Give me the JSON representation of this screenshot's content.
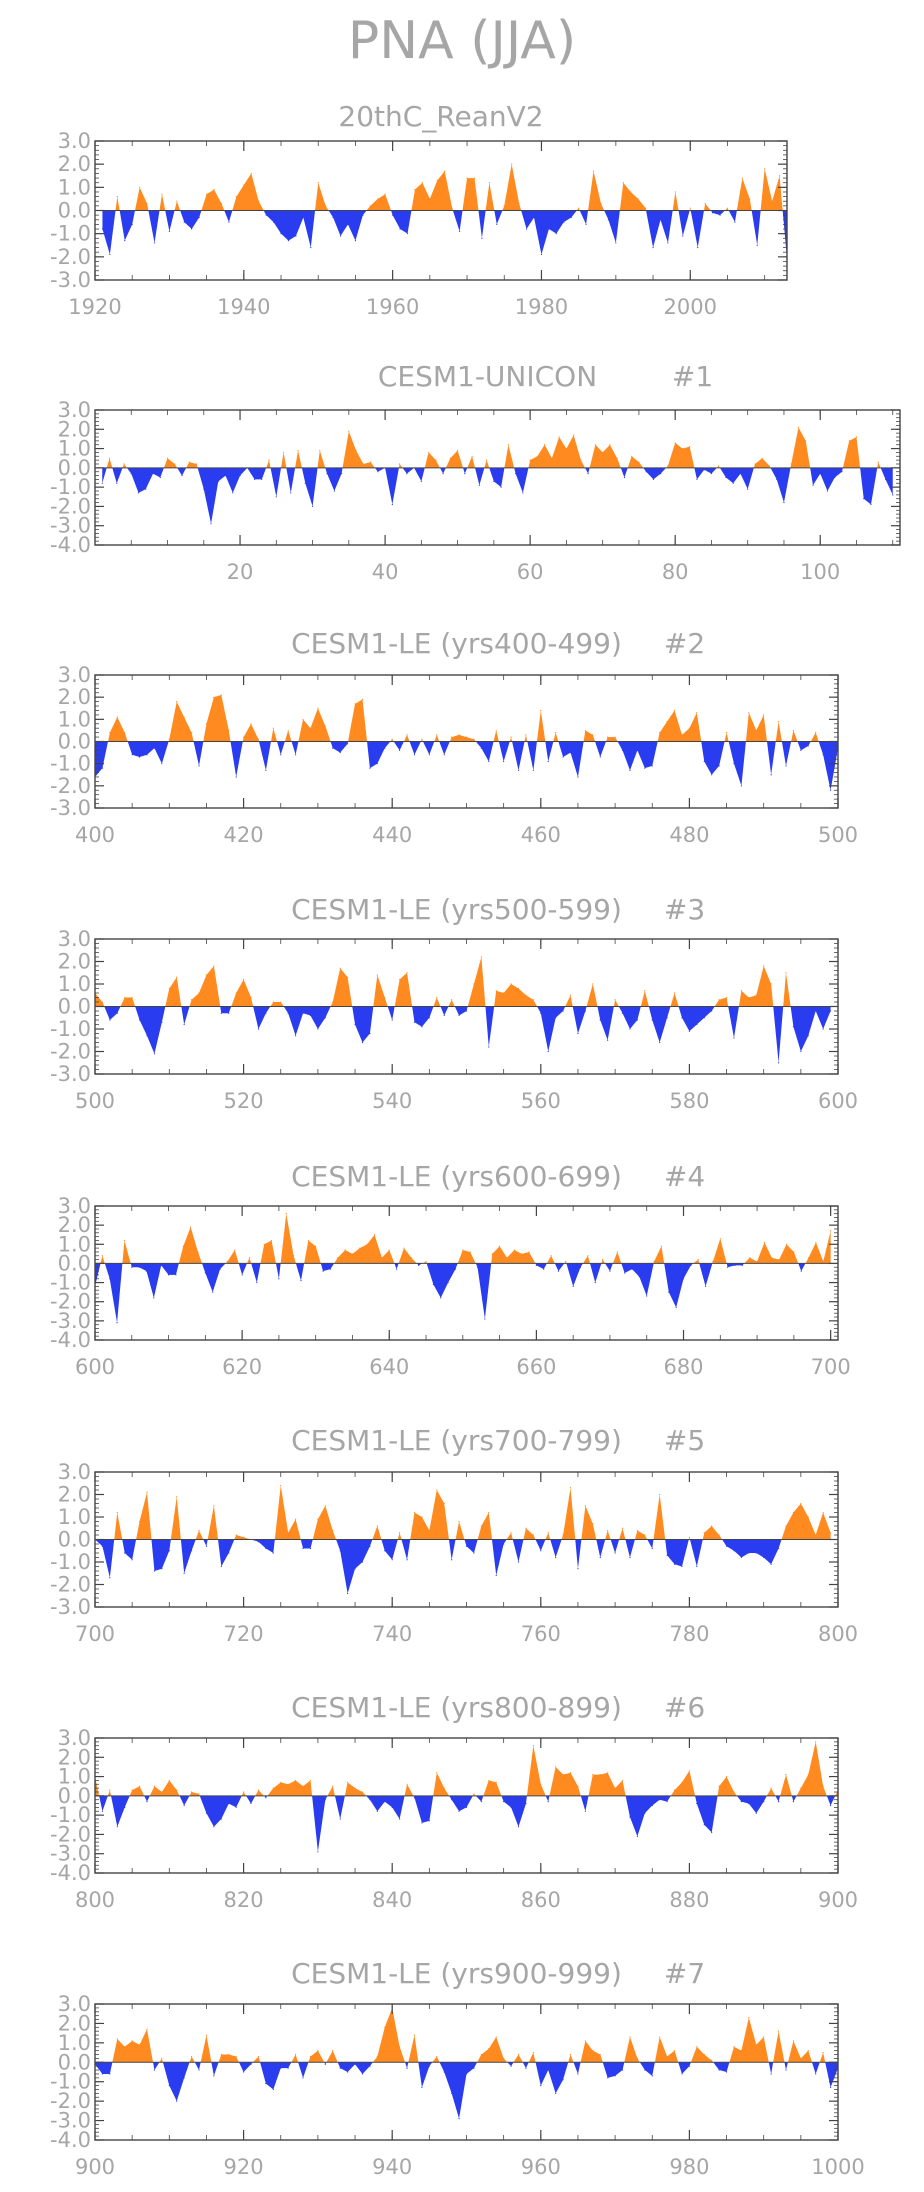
{
  "title": "PNA (JJA)",
  "colors": {
    "positive": "#ff8a1f",
    "negative": "#2a3cf0",
    "frame": "#444444",
    "text": "#a6a6a6"
  },
  "chart_data": [
    {
      "type": "area",
      "title": "20thC_ReanV2",
      "x_start": 1921,
      "xlim": [
        1920,
        2013
      ],
      "xticks": [
        "1920",
        "1940",
        "1960",
        "1980",
        "2000"
      ],
      "ylim": [
        -3.0,
        3.0
      ],
      "yticks": [
        "3.0",
        "2.0",
        "1.0",
        "0.0",
        "-1.0",
        "-2.0",
        "-3.0"
      ],
      "values": [
        -0.8,
        -1.9,
        0.6,
        -1.3,
        -0.6,
        1.0,
        0.3,
        -1.4,
        0.7,
        -0.9,
        0.4,
        -0.5,
        -0.8,
        -0.3,
        0.7,
        0.9,
        0.3,
        -0.5,
        0.6,
        1.1,
        1.6,
        0.4,
        -0.2,
        -0.5,
        -1.0,
        -1.3,
        -1.1,
        -0.3,
        -1.6,
        1.2,
        0.2,
        -0.3,
        -1.1,
        -0.6,
        -1.3,
        -0.2,
        0.2,
        0.5,
        0.7,
        -0.2,
        -0.8,
        -1.0,
        0.9,
        1.2,
        0.5,
        1.3,
        1.7,
        0.1,
        -0.9,
        1.4,
        1.4,
        -1.2,
        1.2,
        -0.6,
        0.2,
        2.0,
        0.3,
        -0.8,
        -0.3,
        -1.9,
        -0.8,
        -1.0,
        -0.5,
        -0.3,
        0.1,
        -0.6,
        1.7,
        0.3,
        -0.4,
        -1.4,
        1.2,
        0.8,
        0.5,
        0.1,
        -1.6,
        -0.4,
        -1.4,
        0.8,
        -1.1,
        0.1,
        -1.6,
        0.3,
        -0.1,
        -0.2,
        0.1,
        -0.5,
        1.4,
        0.5,
        -1.5,
        1.8,
        0.4,
        1.5,
        -2.1
      ]
    },
    {
      "type": "area",
      "title": "CESM1-UNICON",
      "label": "#1",
      "x_start": 1,
      "xlim": [
        0,
        111
      ],
      "xticks": [
        "20",
        "40",
        "60",
        "80",
        "100"
      ],
      "ylim": [
        -4.0,
        3.0
      ],
      "yticks": [
        "3.0",
        "2.0",
        "1.0",
        "0.0",
        "-1.0",
        "-2.0",
        "-3.0",
        "-4.0"
      ],
      "values": [
        -0.8,
        0.5,
        -0.8,
        0.2,
        -0.3,
        -1.3,
        -1.1,
        -0.3,
        -0.5,
        0.5,
        0.2,
        -0.4,
        0.3,
        0.2,
        -1.1,
        -2.9,
        -0.7,
        -0.4,
        -1.3,
        -0.4,
        0.0,
        -0.6,
        -0.6,
        0.4,
        -1.5,
        0.8,
        -1.3,
        0.9,
        -0.8,
        -2.0,
        0.9,
        -0.3,
        -1.2,
        -0.3,
        1.9,
        0.9,
        0.2,
        0.3,
        -0.2,
        0.0,
        -1.9,
        0.2,
        -0.3,
        0.0,
        -0.7,
        0.8,
        0.4,
        -0.3,
        0.5,
        0.9,
        -0.3,
        0.6,
        -0.9,
        0.4,
        -0.7,
        -1.0,
        1.2,
        -0.3,
        -1.3,
        0.4,
        0.6,
        1.2,
        0.5,
        1.6,
        1.0,
        1.7,
        0.4,
        -0.3,
        1.2,
        0.8,
        1.2,
        0.5,
        -0.5,
        0.6,
        0.3,
        -0.2,
        -0.6,
        -0.3,
        0.1,
        1.3,
        1.0,
        1.1,
        -0.6,
        -0.1,
        -0.3,
        0.1,
        -0.5,
        -0.8,
        -0.3,
        -1.1,
        0.2,
        0.5,
        0.1,
        -0.6,
        -1.8,
        0.2,
        2.1,
        1.4,
        -0.9,
        -0.3,
        -1.2,
        -0.5,
        -0.2,
        1.4,
        1.6,
        -1.6,
        -1.9,
        0.3,
        -0.6,
        -1.4
      ]
    },
    {
      "type": "area",
      "title": "CESM1-LE (yrs400-499)",
      "label": "#2",
      "x_start": 400,
      "xlim": [
        400,
        500
      ],
      "xticks": [
        "400",
        "420",
        "440",
        "460",
        "480",
        "500"
      ],
      "ylim": [
        -3.0,
        3.0
      ],
      "yticks": [
        "3.0",
        "2.0",
        "1.0",
        "0.0",
        "-1.0",
        "-2.0",
        "-3.0"
      ],
      "values": [
        -1.6,
        -1.2,
        0.4,
        1.1,
        0.4,
        -0.6,
        -0.7,
        -0.6,
        -0.3,
        -1.0,
        0.1,
        1.8,
        1.1,
        0.4,
        -1.1,
        0.8,
        2.0,
        2.1,
        0.5,
        -1.6,
        0.2,
        0.8,
        0.1,
        -1.3,
        0.6,
        -0.6,
        0.5,
        -0.6,
        1.0,
        0.6,
        1.5,
        0.7,
        -0.3,
        -0.5,
        -0.1,
        1.7,
        1.9,
        -1.2,
        -1.0,
        -0.3,
        0.1,
        -0.4,
        0.3,
        -0.6,
        0.1,
        -0.6,
        0.3,
        -0.6,
        0.2,
        0.3,
        0.2,
        0.1,
        -0.3,
        -0.9,
        0.5,
        -0.9,
        0.2,
        -1.3,
        0.3,
        -1.3,
        1.4,
        -0.9,
        0.4,
        -0.7,
        -0.5,
        -1.6,
        0.5,
        0.3,
        -0.7,
        0.2,
        0.2,
        -0.4,
        -1.3,
        -0.4,
        -1.2,
        -1.1,
        0.4,
        0.9,
        1.4,
        0.3,
        0.6,
        1.3,
        -0.9,
        -1.5,
        -1.1,
        0.4,
        -1.0,
        -2.0,
        1.3,
        0.5,
        1.2,
        -1.5,
        0.9,
        -1.1,
        0.5,
        -0.4,
        -0.2,
        0.4,
        -0.6,
        -2.2,
        -0.3
      ]
    },
    {
      "type": "area",
      "title": "CESM1-LE (yrs500-599)",
      "label": "#3",
      "x_start": 500,
      "xlim": [
        500,
        600
      ],
      "xticks": [
        "500",
        "520",
        "540",
        "560",
        "580",
        "600"
      ],
      "ylim": [
        -3.0,
        3.0
      ],
      "yticks": [
        "3.0",
        "2.0",
        "1.0",
        "0.0",
        "-1.0",
        "-2.0",
        "-3.0"
      ],
      "values": [
        0.6,
        0.2,
        -0.6,
        -0.3,
        0.4,
        0.4,
        -0.6,
        -1.3,
        -2.1,
        -0.7,
        0.8,
        1.3,
        -0.8,
        0.3,
        0.6,
        1.4,
        1.8,
        -0.3,
        -0.3,
        0.6,
        1.2,
        0.4,
        -1.0,
        -0.3,
        0.2,
        0.2,
        -0.3,
        -1.3,
        -0.3,
        -0.4,
        -1.0,
        -0.5,
        0.2,
        1.7,
        1.3,
        -0.8,
        -1.6,
        -1.2,
        1.4,
        0.4,
        -0.6,
        1.2,
        1.5,
        -0.7,
        -0.9,
        -0.5,
        0.4,
        -0.4,
        0.3,
        -0.4,
        -0.2,
        1.0,
        2.2,
        -1.8,
        0.7,
        0.6,
        1.0,
        0.8,
        0.5,
        0.3,
        -0.3,
        -2.0,
        -0.5,
        -0.2,
        0.5,
        -1.2,
        -0.2,
        1.0,
        -0.6,
        -1.5,
        0.3,
        -0.3,
        -1.0,
        -0.6,
        0.7,
        -0.6,
        -1.6,
        -0.5,
        0.6,
        -0.5,
        -1.1,
        -0.8,
        -0.5,
        -0.2,
        0.3,
        0.4,
        -1.4,
        0.7,
        0.4,
        0.5,
        1.8,
        1.0,
        -2.5,
        1.5,
        -0.9,
        -2.0,
        -1.3,
        -0.2,
        -1.0,
        -0.2
      ]
    },
    {
      "type": "area",
      "title": "CESM1-LE (yrs600-699)",
      "label": "#4",
      "x_start": 600,
      "xlim": [
        600,
        701
      ],
      "xticks": [
        "600",
        "620",
        "640",
        "660",
        "680",
        "700"
      ],
      "ylim": [
        -4.0,
        3.0
      ],
      "yticks": [
        "3.0",
        "2.0",
        "1.0",
        "0.0",
        "-1.0",
        "-2.0",
        "-3.0",
        "-4.0"
      ],
      "values": [
        -1.2,
        0.4,
        -0.8,
        -3.1,
        1.2,
        -0.2,
        -0.2,
        -0.4,
        -1.8,
        -0.1,
        -0.6,
        -0.6,
        0.9,
        1.9,
        0.6,
        -0.5,
        -1.5,
        -0.3,
        0.1,
        0.7,
        -0.6,
        0.3,
        -1.0,
        1.0,
        1.2,
        -0.8,
        2.6,
        0.4,
        -0.9,
        1.2,
        0.9,
        -0.4,
        -0.3,
        0.3,
        0.7,
        0.5,
        0.8,
        1.0,
        1.5,
        0.3,
        0.7,
        -0.3,
        0.8,
        0.3,
        -0.1,
        0.1,
        -1.1,
        -1.8,
        -1.0,
        -0.3,
        0.7,
        0.6,
        -0.2,
        -2.9,
        0.5,
        0.9,
        0.3,
        0.7,
        0.5,
        0.6,
        -0.1,
        -0.3,
        0.4,
        -0.4,
        0.1,
        -1.2,
        -0.2,
        0.4,
        -1.0,
        0.2,
        -0.4,
        0.6,
        -0.5,
        -0.3,
        -0.7,
        -1.7,
        0.1,
        0.9,
        -1.5,
        -2.3,
        -0.8,
        -0.1,
        0.2,
        -1.2,
        0.1,
        1.3,
        -0.2,
        -0.1,
        -0.1,
        0.3,
        0.1,
        1.1,
        0.3,
        0.2,
        1.0,
        0.6,
        -0.4,
        0.3,
        1.1,
        0.1,
        1.7
      ]
    },
    {
      "type": "area",
      "title": "CESM1-LE (yrs700-799)",
      "label": "#5",
      "x_start": 700,
      "xlim": [
        700,
        800
      ],
      "xticks": [
        "700",
        "720",
        "740",
        "760",
        "780",
        "800"
      ],
      "ylim": [
        -3.0,
        3.0
      ],
      "yticks": [
        "3.0",
        "2.0",
        "1.0",
        "0.0",
        "-1.0",
        "-2.0",
        "-3.0"
      ],
      "values": [
        0.0,
        -0.3,
        -1.7,
        1.2,
        -0.6,
        -0.9,
        0.8,
        2.1,
        -1.4,
        -1.3,
        -0.5,
        1.9,
        -1.5,
        -0.5,
        0.4,
        -0.3,
        1.5,
        -1.2,
        -0.6,
        0.2,
        0.1,
        0.0,
        -0.1,
        -0.4,
        -0.6,
        2.4,
        0.3,
        0.9,
        -0.4,
        -0.4,
        0.9,
        1.5,
        0.4,
        -0.5,
        -2.4,
        -1.3,
        -1.0,
        -0.3,
        0.6,
        -0.5,
        -0.9,
        0.3,
        -0.9,
        1.2,
        1.0,
        0.4,
        2.2,
        1.6,
        -0.9,
        0.8,
        -0.3,
        -0.6,
        0.6,
        1.2,
        -1.6,
        -0.2,
        0.3,
        -1.0,
        0.5,
        0.2,
        -0.5,
        0.3,
        -0.8,
        0.2,
        2.3,
        -1.3,
        1.5,
        0.7,
        -0.8,
        0.4,
        -0.6,
        0.5,
        -0.8,
        0.4,
        0.2,
        -0.4,
        2.0,
        -0.7,
        -1.1,
        -1.2,
        0.1,
        -1.2,
        0.3,
        0.6,
        0.2,
        -0.3,
        -0.5,
        -0.8,
        -0.6,
        -0.6,
        -0.8,
        -1.1,
        -0.4,
        0.6,
        1.2,
        1.6,
        1.0,
        0.2,
        1.2,
        0.3
      ]
    },
    {
      "type": "area",
      "title": "CESM1-LE (yrs800-899)",
      "label": "#6",
      "x_start": 800,
      "xlim": [
        800,
        900
      ],
      "xticks": [
        "800",
        "820",
        "840",
        "860",
        "880",
        "900"
      ],
      "ylim": [
        -4.0,
        3.0
      ],
      "yticks": [
        "3.0",
        "2.0",
        "1.0",
        "0.0",
        "-1.0",
        "-2.0",
        "-3.0",
        "-4.0"
      ],
      "values": [
        1.0,
        -0.8,
        0.3,
        -1.6,
        -0.6,
        0.3,
        0.5,
        -0.3,
        0.5,
        0.2,
        0.8,
        0.3,
        -0.5,
        0.2,
        0.1,
        -0.9,
        -1.6,
        -1.2,
        -0.4,
        -0.6,
        0.2,
        -0.4,
        0.3,
        -0.1,
        0.4,
        0.7,
        0.6,
        0.8,
        0.5,
        0.8,
        -2.9,
        -0.2,
        0.5,
        -1.2,
        0.7,
        0.4,
        0.2,
        -0.2,
        -0.8,
        -0.3,
        -0.6,
        -1.2,
        0.6,
        -0.1,
        -1.4,
        -1.3,
        1.2,
        0.4,
        -0.2,
        -0.8,
        -0.6,
        0.1,
        -0.3,
        0.8,
        0.7,
        -0.3,
        -0.6,
        -1.6,
        -0.4,
        2.6,
        0.6,
        -0.3,
        1.5,
        1.1,
        1.2,
        0.5,
        -0.8,
        1.1,
        1.1,
        1.2,
        0.4,
        0.8,
        -1.1,
        -2.1,
        -0.9,
        -0.5,
        -0.2,
        -0.3,
        0.3,
        0.7,
        1.3,
        -0.4,
        -1.5,
        -1.9,
        0.5,
        1.0,
        0.2,
        -0.3,
        -0.4,
        -0.9,
        -0.3,
        0.4,
        -0.3,
        1.1,
        -0.3,
        0.4,
        1.1,
        2.8,
        0.5,
        -0.5,
        0.3
      ]
    },
    {
      "type": "area",
      "title": "CESM1-LE (yrs900-999)",
      "label": "#7",
      "x_start": 900,
      "xlim": [
        900,
        1000
      ],
      "xticks": [
        "900",
        "920",
        "940",
        "960",
        "980",
        "1000"
      ],
      "ylim": [
        -4.0,
        3.0
      ],
      "yticks": [
        "3.0",
        "2.0",
        "1.0",
        "0.0",
        "-1.0",
        "-2.0",
        "-3.0",
        "-4.0"
      ],
      "values": [
        -0.1,
        -0.6,
        -0.6,
        1.2,
        0.8,
        1.1,
        0.9,
        1.7,
        -0.4,
        0.2,
        -1.2,
        -2.0,
        -0.8,
        0.3,
        -0.4,
        1.4,
        -0.7,
        0.4,
        0.4,
        0.3,
        -0.5,
        -0.1,
        0.3,
        -1.1,
        -1.4,
        -0.3,
        -0.3,
        0.4,
        -0.8,
        0.3,
        0.6,
        -0.1,
        0.6,
        -0.3,
        -0.5,
        -0.1,
        -0.6,
        -0.2,
        0.3,
        1.8,
        2.8,
        0.8,
        -0.3,
        1.4,
        -1.3,
        -0.2,
        0.3,
        -0.5,
        -1.6,
        -2.9,
        -0.6,
        -0.3,
        0.4,
        0.7,
        1.3,
        0.2,
        -0.2,
        0.4,
        -0.3,
        0.5,
        -1.2,
        -0.4,
        -1.6,
        -0.9,
        0.4,
        -0.6,
        1.1,
        0.6,
        0.4,
        -0.8,
        -0.7,
        -0.4,
        1.3,
        0.2,
        -0.4,
        -0.7,
        1.3,
        0.3,
        0.6,
        -0.6,
        -0.2,
        0.8,
        0.4,
        0.1,
        -0.4,
        -0.5,
        0.8,
        0.6,
        2.3,
        0.9,
        1.3,
        -0.6,
        1.6,
        -0.4,
        1.1,
        0.2,
        0.6,
        -0.6,
        0.5,
        -1.3,
        -0.3
      ]
    }
  ]
}
